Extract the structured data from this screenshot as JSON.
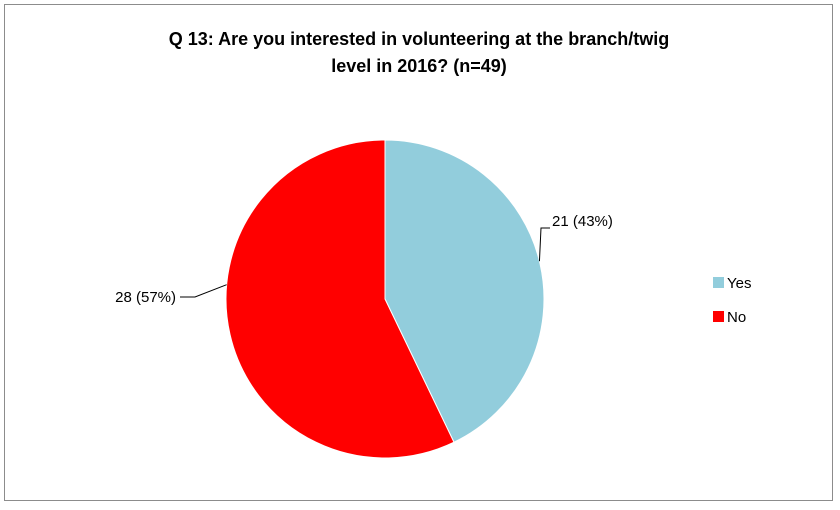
{
  "chart_data": {
    "type": "pie",
    "title_lines": [
      "Q 13:  Are you interested in volunteering at the branch/twig",
      "level  in 2016? (n=49)"
    ],
    "categories": [
      "Yes",
      "No"
    ],
    "values": [
      21,
      28
    ],
    "percent_labels": [
      "21 (43%)",
      "28 (57%)"
    ],
    "colors": [
      "#92CDDC",
      "#FF0000"
    ],
    "start_angle": "12 o'clock, clockwise",
    "legend": {
      "position": "right",
      "entries": [
        "Yes",
        "No"
      ]
    }
  }
}
